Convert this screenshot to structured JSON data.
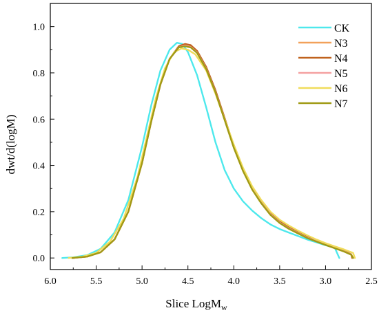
{
  "chart_data": {
    "type": "line",
    "title": "",
    "xlabel": "Slice LogM",
    "xlabel_sub": "w",
    "ylabel": "dwt/d(logM)",
    "xlim": [
      6.0,
      2.5
    ],
    "ylim": [
      -0.05,
      1.1
    ],
    "x_reversed": true,
    "x_ticks": [
      6.0,
      5.5,
      5.0,
      4.5,
      4.0,
      3.5,
      3.0,
      2.5
    ],
    "x_tick_labels": [
      "6.0",
      "5.5",
      "5.0",
      "4.5",
      "4.0",
      "3.5",
      "3.0",
      "2.5"
    ],
    "y_ticks": [
      0.0,
      0.2,
      0.4,
      0.6,
      0.8,
      1.0
    ],
    "y_tick_labels": [
      "0.0",
      "0.2",
      "0.4",
      "0.6",
      "0.8",
      "1.0"
    ],
    "grid": false,
    "legend_position": "top-right",
    "series": [
      {
        "name": "CK",
        "color": "#4de8ec",
        "x": [
          5.87,
          5.75,
          5.6,
          5.45,
          5.3,
          5.15,
          5.0,
          4.9,
          4.8,
          4.7,
          4.62,
          4.56,
          4.5,
          4.4,
          4.3,
          4.2,
          4.1,
          4.0,
          3.9,
          3.8,
          3.7,
          3.6,
          3.5,
          3.4,
          3.3,
          3.2,
          3.1,
          3.0,
          2.9,
          2.85
        ],
        "y": [
          0.0,
          0.003,
          0.012,
          0.04,
          0.11,
          0.25,
          0.48,
          0.66,
          0.81,
          0.9,
          0.93,
          0.925,
          0.89,
          0.79,
          0.65,
          0.5,
          0.38,
          0.3,
          0.245,
          0.205,
          0.172,
          0.145,
          0.125,
          0.11,
          0.095,
          0.08,
          0.068,
          0.055,
          0.045,
          0.0
        ]
      },
      {
        "name": "N3",
        "color": "#f2a15a",
        "x": [
          5.76,
          5.6,
          5.45,
          5.3,
          5.15,
          5.0,
          4.9,
          4.8,
          4.7,
          4.6,
          4.53,
          4.47,
          4.4,
          4.3,
          4.2,
          4.1,
          4.0,
          3.9,
          3.8,
          3.7,
          3.6,
          3.5,
          3.4,
          3.3,
          3.2,
          3.1,
          3.0,
          2.9,
          2.8,
          2.72,
          2.7
        ],
        "y": [
          0.0,
          0.006,
          0.025,
          0.08,
          0.2,
          0.41,
          0.59,
          0.75,
          0.86,
          0.91,
          0.92,
          0.915,
          0.89,
          0.82,
          0.72,
          0.6,
          0.48,
          0.38,
          0.3,
          0.24,
          0.19,
          0.155,
          0.13,
          0.11,
          0.09,
          0.075,
          0.06,
          0.045,
          0.03,
          0.015,
          0.0
        ]
      },
      {
        "name": "N4",
        "color": "#c0621e",
        "x": [
          5.76,
          5.6,
          5.45,
          5.3,
          5.15,
          5.0,
          4.9,
          4.8,
          4.7,
          4.6,
          4.53,
          4.47,
          4.4,
          4.3,
          4.2,
          4.1,
          4.0,
          3.9,
          3.8,
          3.7,
          3.6,
          3.5,
          3.4,
          3.3,
          3.2,
          3.1,
          3.0,
          2.9,
          2.8,
          2.72,
          2.71
        ],
        "y": [
          0.0,
          0.006,
          0.025,
          0.08,
          0.2,
          0.41,
          0.59,
          0.75,
          0.86,
          0.915,
          0.925,
          0.92,
          0.895,
          0.825,
          0.725,
          0.605,
          0.485,
          0.385,
          0.305,
          0.245,
          0.195,
          0.158,
          0.132,
          0.112,
          0.092,
          0.077,
          0.062,
          0.047,
          0.032,
          0.016,
          0.0
        ]
      },
      {
        "name": "N5",
        "color": "#f4a0a0",
        "x": [
          5.76,
          5.6,
          5.45,
          5.3,
          5.15,
          5.0,
          4.9,
          4.8,
          4.7,
          4.6,
          4.53,
          4.47,
          4.4,
          4.3,
          4.2,
          4.1,
          4.0,
          3.9,
          3.8,
          3.7,
          3.6,
          3.5,
          3.4,
          3.3,
          3.2,
          3.1,
          3.0,
          2.9,
          2.8,
          2.72,
          2.7
        ],
        "y": [
          0.0,
          0.006,
          0.025,
          0.08,
          0.2,
          0.41,
          0.59,
          0.75,
          0.86,
          0.91,
          0.918,
          0.912,
          0.888,
          0.818,
          0.718,
          0.598,
          0.478,
          0.378,
          0.298,
          0.238,
          0.188,
          0.153,
          0.128,
          0.108,
          0.088,
          0.073,
          0.058,
          0.044,
          0.029,
          0.015,
          0.0
        ]
      },
      {
        "name": "N6",
        "color": "#f0dc5a",
        "x": [
          5.8,
          5.65,
          5.5,
          5.35,
          5.2,
          5.05,
          4.95,
          4.85,
          4.75,
          4.65,
          4.57,
          4.5,
          4.42,
          4.3,
          4.2,
          4.1,
          4.0,
          3.9,
          3.8,
          3.7,
          3.6,
          3.5,
          3.4,
          3.3,
          3.2,
          3.1,
          3.0,
          2.9,
          2.8,
          2.7,
          2.68
        ],
        "y": [
          0.0,
          0.006,
          0.022,
          0.07,
          0.17,
          0.35,
          0.52,
          0.69,
          0.82,
          0.89,
          0.905,
          0.9,
          0.88,
          0.81,
          0.71,
          0.6,
          0.49,
          0.39,
          0.31,
          0.25,
          0.2,
          0.165,
          0.14,
          0.118,
          0.098,
          0.08,
          0.064,
          0.05,
          0.037,
          0.022,
          0.0
        ]
      },
      {
        "name": "N7",
        "color": "#a09a14",
        "x": [
          5.76,
          5.6,
          5.45,
          5.3,
          5.15,
          5.0,
          4.9,
          4.8,
          4.7,
          4.6,
          4.53,
          4.47,
          4.4,
          4.3,
          4.2,
          4.1,
          4.0,
          3.9,
          3.8,
          3.7,
          3.6,
          3.5,
          3.4,
          3.3,
          3.2,
          3.1,
          3.0,
          2.9,
          2.8,
          2.72,
          2.7
        ],
        "y": [
          0.0,
          0.006,
          0.025,
          0.08,
          0.2,
          0.41,
          0.59,
          0.75,
          0.86,
          0.91,
          0.915,
          0.91,
          0.886,
          0.816,
          0.716,
          0.596,
          0.476,
          0.376,
          0.296,
          0.236,
          0.186,
          0.151,
          0.126,
          0.106,
          0.086,
          0.071,
          0.056,
          0.042,
          0.028,
          0.014,
          0.0
        ]
      }
    ]
  }
}
